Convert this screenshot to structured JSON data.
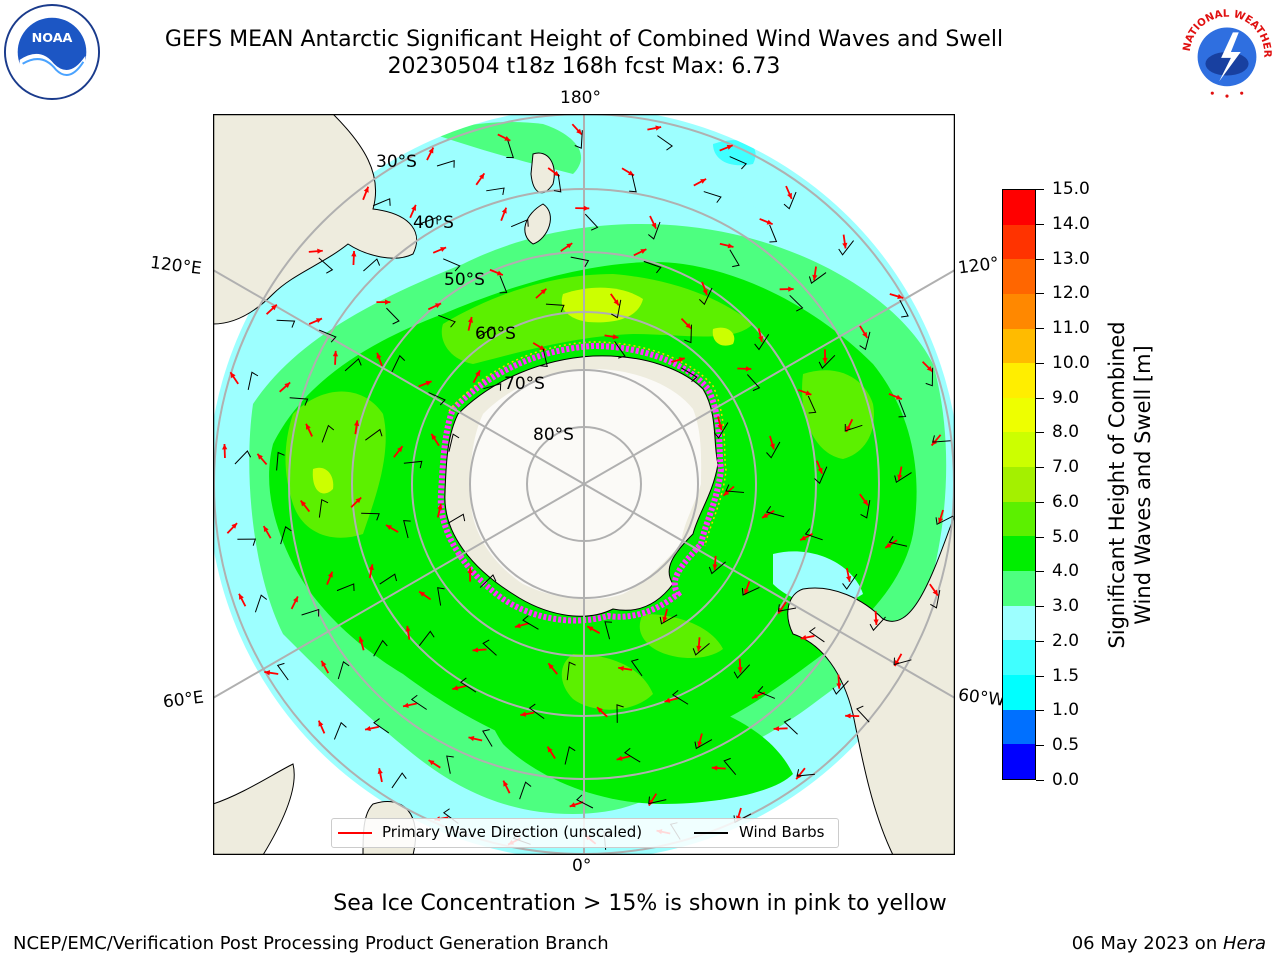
{
  "title": {
    "line1": "GEFS MEAN Antarctic Significant Height of Combined Wind Waves and Swell",
    "line2": "20230504 t18z 168h fcst   Max: 6.73"
  },
  "logos": {
    "noaa": "NOAA",
    "nws": "NATIONAL WEATHER SERVICE"
  },
  "map": {
    "projection": "south-polar-stereographic",
    "lon_labels": {
      "top": "180°",
      "bottom": "0°",
      "left_upper": "120°E",
      "left_lower": "60°E",
      "right_upper": "120°",
      "right_lower": "60°W"
    },
    "lat_labels": [
      "30°S",
      "40°S",
      "50°S",
      "60°S",
      "70°S",
      "80°S"
    ],
    "land_color": "#eeecde",
    "ice_edge_colors": [
      "#ff33ff",
      "#ffd000"
    ]
  },
  "legend": {
    "wave_label": "Primary Wave Direction (unscaled)",
    "wave_color": "#ff0000",
    "barb_label": "Wind Barbs",
    "barb_color": "#000000"
  },
  "colorbar": {
    "label_line1": "Significant Height of Combined",
    "label_line2": "Wind Waves and Swell [m]",
    "ticks": [
      "0.0",
      "0.5",
      "1.0",
      "1.5",
      "2.0",
      "3.0",
      "4.0",
      "5.0",
      "6.0",
      "7.0",
      "8.0",
      "9.0",
      "10.0",
      "11.0",
      "12.0",
      "13.0",
      "14.0",
      "15.0"
    ],
    "colors": [
      "#0000ff",
      "#0070ff",
      "#00ffff",
      "#40ffff",
      "#9dffff",
      "#4dff80",
      "#00ee00",
      "#5cf000",
      "#a4f000",
      "#ccff00",
      "#eeff00",
      "#ffee00",
      "#ffbb00",
      "#ff8800",
      "#ff6600",
      "#ff3300",
      "#ff0000"
    ]
  },
  "note": "Sea Ice Concentration > 15% is shown in pink to yellow",
  "credit": "NCEP/EMC/Verification Post Processing Product Generation Branch",
  "date": {
    "text": "06 May 2023 on ",
    "machine": "Hera"
  }
}
